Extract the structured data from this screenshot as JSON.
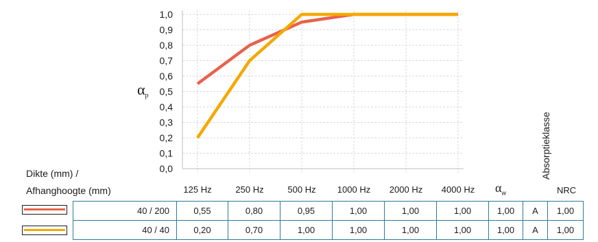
{
  "chart_data": {
    "type": "line",
    "categories": [
      "125 Hz",
      "250 Hz",
      "500 Hz",
      "1000 Hz",
      "2000 Hz",
      "4000 Hz"
    ],
    "ylabel": "α",
    "ylabel_sub": "p",
    "ylim": [
      0,
      1.0
    ],
    "yticks": [
      "0,0",
      "0,1",
      "0,2",
      "0,3",
      "0,4",
      "0,5",
      "0,6",
      "0,7",
      "0,8",
      "0,9",
      "1,0"
    ],
    "grid": true,
    "series": [
      {
        "color": "#e8614a",
        "values": [
          0.55,
          0.8,
          0.95,
          1.0,
          1.0,
          1.0
        ]
      },
      {
        "color": "#f5a800",
        "values": [
          0.2,
          0.7,
          1.0,
          1.0,
          1.0,
          1.0
        ]
      }
    ]
  },
  "labels": {
    "dikte_line1": "Dikte (mm) /",
    "dikte_line2": "Afhanghoogte (mm)",
    "alpha_w": "α",
    "alpha_w_sub": "w",
    "absorptieklasse": "Absorptieklasse",
    "nrc": "NRC"
  },
  "table": {
    "rows": [
      {
        "swatch_color": "#e8614a",
        "dims": "40 / 200",
        "values": [
          "0,55",
          "0,80",
          "0,95",
          "1,00",
          "1,00",
          "1,00"
        ],
        "alpha_w": "1,00",
        "klasse": "A",
        "nrc": "1,00"
      },
      {
        "swatch_color": "#f5a800",
        "dims": "40 / 40",
        "values": [
          "0,20",
          "0,70",
          "1,00",
          "1,00",
          "1,00",
          "1,00"
        ],
        "alpha_w": "1,00",
        "klasse": "A",
        "nrc": "1,00"
      }
    ]
  }
}
